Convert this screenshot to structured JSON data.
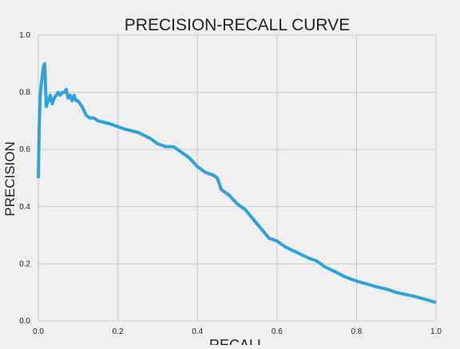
{
  "chart_data": {
    "type": "line",
    "title": "PRECISION-RECALL CURVE",
    "xlabel": "RECALL",
    "ylabel": "PRECISION",
    "xlim": [
      0,
      1
    ],
    "ylim": [
      0,
      1
    ],
    "xticks": [
      "0.0",
      "0.2",
      "0.4",
      "0.6",
      "0.8",
      "1.0"
    ],
    "yticks": [
      "0.0",
      "0.2",
      "0.4",
      "0.6",
      "0.8",
      "1.0"
    ],
    "grid": true,
    "legend": "none",
    "series": [
      {
        "color": "#30a2da",
        "x": [
          0.0,
          0.002,
          0.005,
          0.01,
          0.013,
          0.016,
          0.018,
          0.02,
          0.022,
          0.025,
          0.03,
          0.035,
          0.04,
          0.045,
          0.05,
          0.055,
          0.06,
          0.065,
          0.07,
          0.075,
          0.08,
          0.085,
          0.09,
          0.095,
          0.1,
          0.11,
          0.12,
          0.13,
          0.14,
          0.15,
          0.18,
          0.2,
          0.22,
          0.25,
          0.28,
          0.3,
          0.32,
          0.34,
          0.36,
          0.38,
          0.4,
          0.42,
          0.44,
          0.45,
          0.46,
          0.48,
          0.5,
          0.52,
          0.55,
          0.58,
          0.6,
          0.62,
          0.65,
          0.68,
          0.7,
          0.72,
          0.75,
          0.77,
          0.8,
          0.85,
          0.88,
          0.9,
          0.95,
          1.0
        ],
        "y": [
          0.5,
          0.67,
          0.8,
          0.86,
          0.89,
          0.9,
          0.82,
          0.75,
          0.76,
          0.77,
          0.79,
          0.76,
          0.78,
          0.79,
          0.8,
          0.79,
          0.8,
          0.8,
          0.81,
          0.78,
          0.79,
          0.77,
          0.79,
          0.77,
          0.77,
          0.75,
          0.72,
          0.71,
          0.71,
          0.7,
          0.69,
          0.68,
          0.67,
          0.66,
          0.64,
          0.62,
          0.61,
          0.61,
          0.59,
          0.57,
          0.54,
          0.52,
          0.51,
          0.5,
          0.46,
          0.44,
          0.41,
          0.39,
          0.34,
          0.29,
          0.28,
          0.26,
          0.24,
          0.22,
          0.21,
          0.19,
          0.17,
          0.155,
          0.14,
          0.12,
          0.11,
          0.1,
          0.085,
          0.065
        ]
      }
    ]
  }
}
